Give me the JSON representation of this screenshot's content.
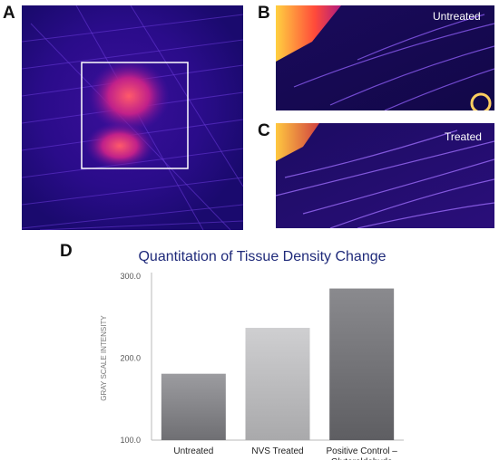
{
  "panels": {
    "a": {
      "letter": "A"
    },
    "b": {
      "letter": "B",
      "label": "Untreated"
    },
    "c": {
      "letter": "C",
      "label": "Treated"
    },
    "d": {
      "letter": "D"
    }
  },
  "chart_data": {
    "type": "bar",
    "title": "Quantitation of Tissue Density Change",
    "xlabel": "",
    "ylabel": "GRAY SCALE INTENSITY",
    "categories": [
      "Untreated",
      "NVS Treated",
      "Positive Control – Glutaraldehyde"
    ],
    "category_lines": [
      [
        "Untreated"
      ],
      [
        "NVS Treated"
      ],
      [
        "Positive Control –",
        "Glutaraldehyde"
      ]
    ],
    "values": [
      181,
      237,
      285
    ],
    "ylim": [
      100,
      300
    ],
    "yticks": [
      100,
      200,
      300
    ],
    "ytick_labels": [
      "100.0",
      "200.0",
      "300.0"
    ],
    "grid": false,
    "colors": {
      "title": "#1f2a7a",
      "bar_top": [
        "#9c9ca0",
        "#cfcfd1",
        "#8a8a8e"
      ],
      "bar_bottom": [
        "#6f6f73",
        "#a9a9ab",
        "#5e5e62"
      ],
      "axis": "#b8b8b8",
      "tick_text": "#555555"
    }
  }
}
